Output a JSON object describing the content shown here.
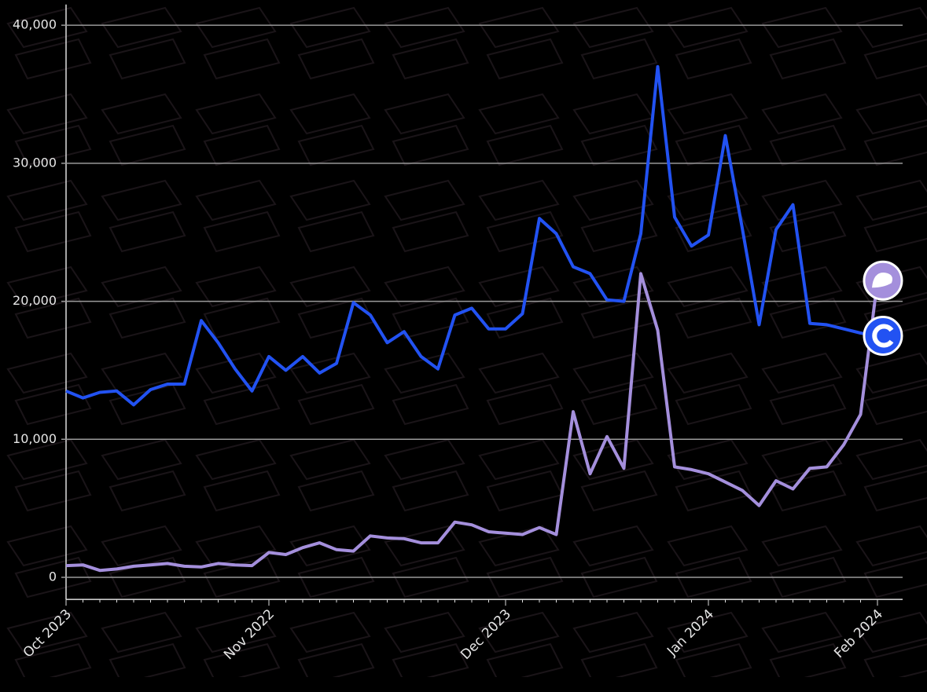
{
  "chart_data": {
    "type": "line",
    "categories": [
      "Oct 2023",
      null,
      null,
      null,
      null,
      null,
      null,
      null,
      null,
      null,
      null,
      null,
      "Nov 2022",
      null,
      null,
      null,
      null,
      null,
      null,
      null,
      null,
      null,
      null,
      null,
      null,
      null,
      "Dec 2023",
      null,
      null,
      null,
      null,
      null,
      null,
      null,
      null,
      null,
      null,
      null,
      "Jan 2024",
      null,
      null,
      null,
      null,
      null,
      null,
      null,
      null,
      null,
      "Feb 2024"
    ],
    "series": [
      {
        "color": "#2252f2",
        "values": [
          13500,
          13000,
          13400,
          13500,
          12500,
          13600,
          14000,
          14000,
          18600,
          17000,
          15100,
          13500,
          16000,
          15000,
          16000,
          14800,
          15500,
          19900,
          19000,
          17000,
          17800,
          16000,
          15100,
          19000,
          19500,
          18000,
          18000,
          19100,
          26000,
          24900,
          22500,
          22000,
          20100,
          20000,
          24900,
          37000,
          26100,
          24000,
          24800,
          32000,
          25300,
          18300,
          25200,
          27000,
          18400,
          18300,
          18000,
          17700,
          17500
        ]
      },
      {
        "color": "#a48fdc",
        "values": [
          850,
          900,
          500,
          600,
          800,
          900,
          1000,
          800,
          750,
          1000,
          900,
          850,
          1800,
          1650,
          2150,
          2500,
          2000,
          1900,
          3000,
          2850,
          2800,
          2500,
          2500,
          4000,
          3800,
          3300,
          3200,
          3100,
          3600,
          3100,
          12000,
          7500,
          10200,
          7900,
          22000,
          17900,
          8000,
          7800,
          7500,
          6900,
          6300,
          5200,
          7000,
          6400,
          7900,
          8000,
          9600,
          11800,
          21500
        ]
      }
    ],
    "ylim": [
      -1600,
      41500
    ],
    "yticks": [
      0,
      {
        "value": 10000,
        "label": "10,000"
      },
      {
        "value": 20000,
        "label": "20,000"
      },
      {
        "value": 30000,
        "label": "30,000"
      },
      {
        "value": 40000,
        "label": "40,000"
      }
    ],
    "grid": true
  }
}
